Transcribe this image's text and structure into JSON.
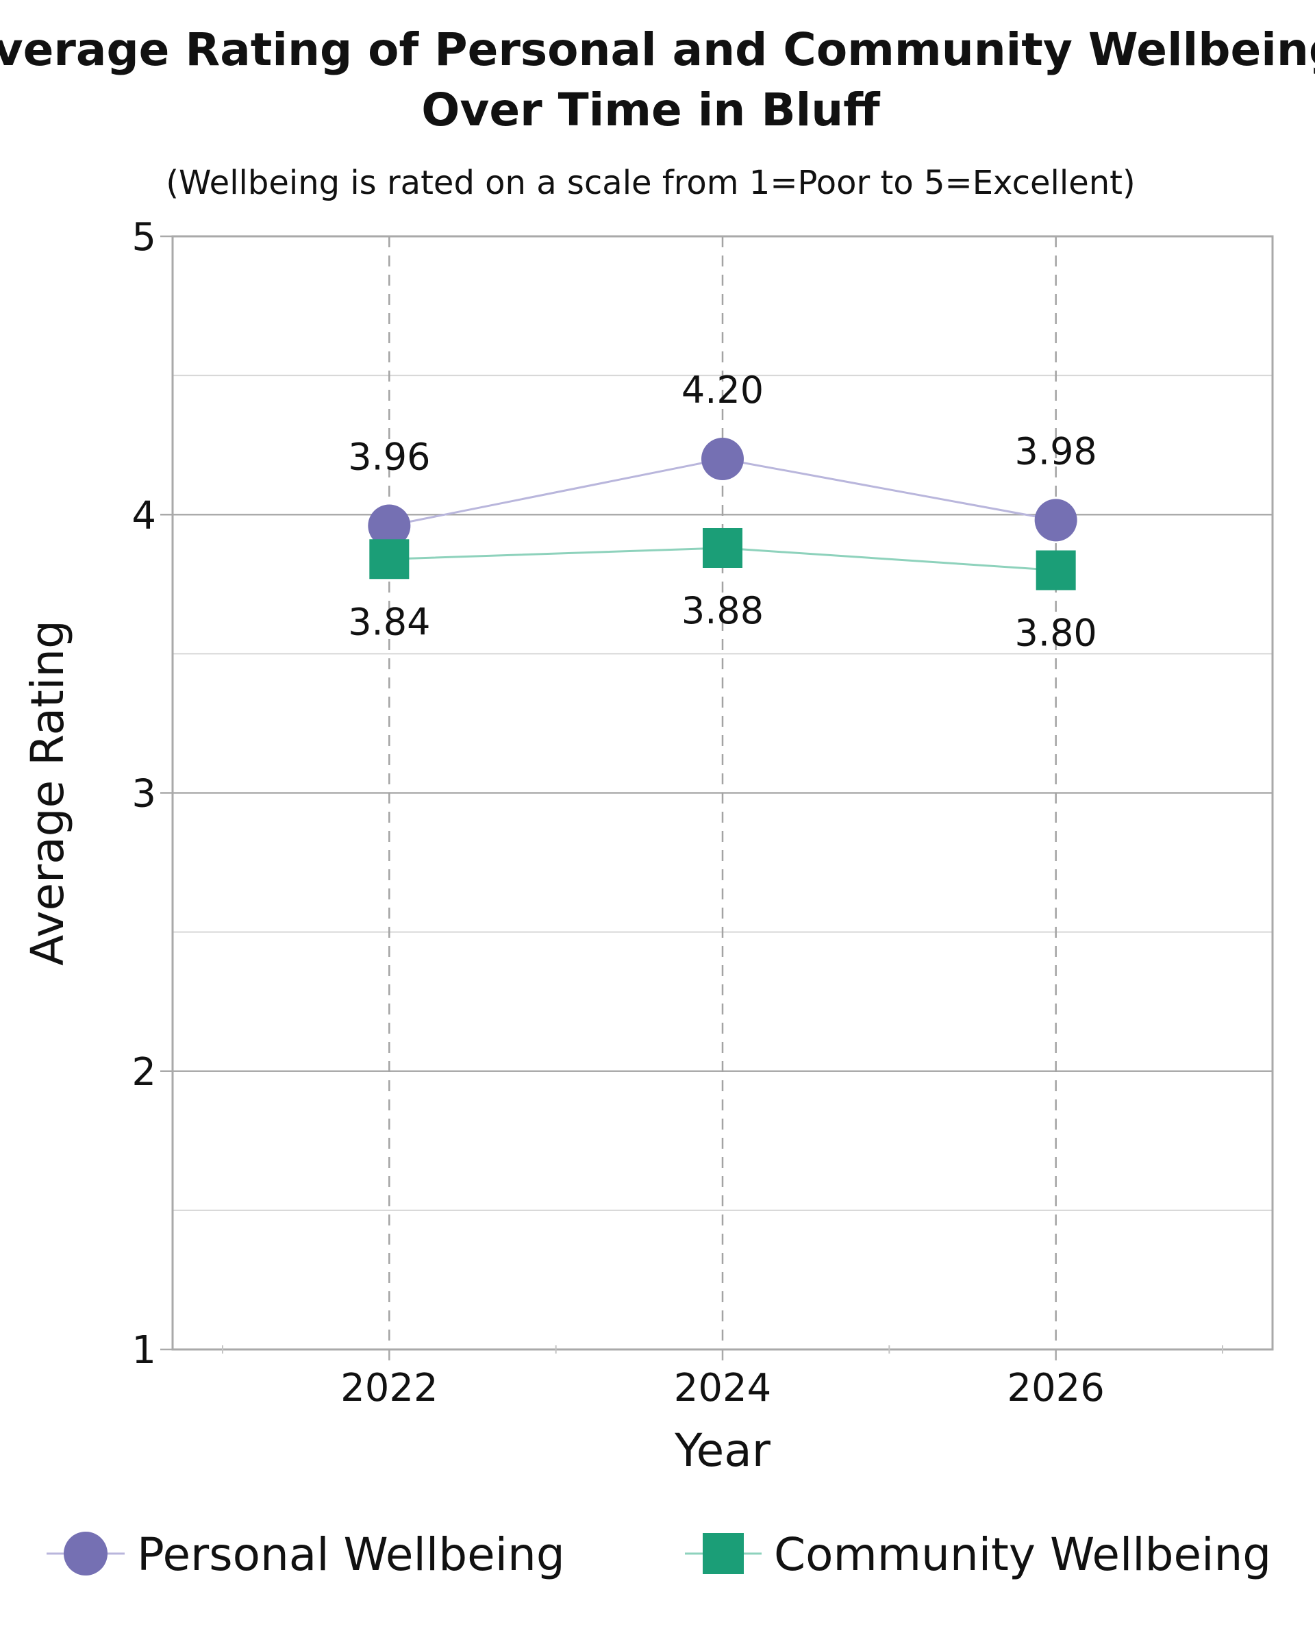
{
  "chart_data": {
    "type": "line",
    "title_lines": [
      "Average Rating of Personal and Community Wellbeing",
      "Over Time in Bluff"
    ],
    "subtitle": "(Wellbeing is rated on a scale from 1=Poor to 5=Excellent)",
    "xlabel": "Year",
    "ylabel": "Average Rating",
    "x": [
      2022,
      2024,
      2026
    ],
    "x_tick_labels": [
      "2022",
      "2024",
      "2026"
    ],
    "xlim": [
      2020.7,
      2027.3
    ],
    "ylim": [
      1,
      5
    ],
    "y_ticks": [
      1,
      2,
      3,
      4,
      5
    ],
    "y_tick_labels": [
      "1",
      "2",
      "3",
      "4",
      "5"
    ],
    "y_minor_ticks": [
      1.5,
      2.5,
      3.5,
      4.5
    ],
    "grid": true,
    "legend_position": "bottom",
    "series": [
      {
        "name": "Personal Wellbeing",
        "marker": "circle",
        "color": "#7570b3",
        "line_color": "#b9b6dc",
        "values": [
          3.96,
          4.2,
          3.98
        ],
        "labels": [
          "3.96",
          "4.20",
          "3.98"
        ],
        "label_position": "above"
      },
      {
        "name": "Community Wellbeing",
        "marker": "square",
        "color": "#1b9e77",
        "line_color": "#8ed2bc",
        "values": [
          3.84,
          3.88,
          3.8
        ],
        "labels": [
          "3.84",
          "3.88",
          "3.80"
        ],
        "label_position": "below"
      }
    ]
  }
}
